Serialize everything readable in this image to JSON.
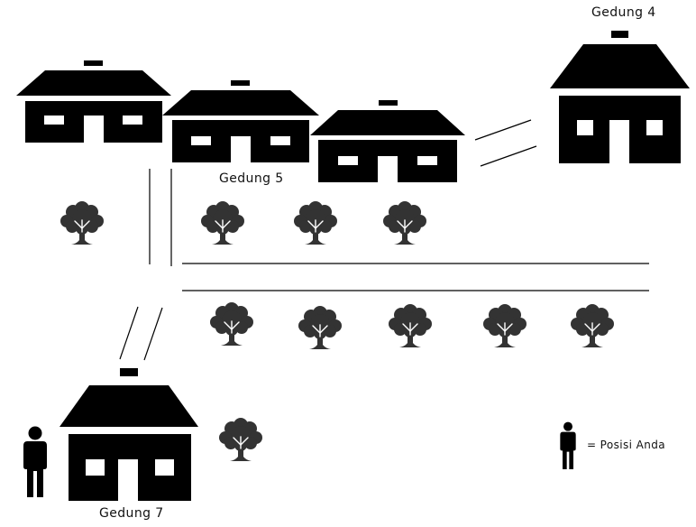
{
  "labels": {
    "gedung_4": "Gedung 4",
    "gedung_5": "Gedung 5",
    "gedung_7": "Gedung 7"
  },
  "legend": {
    "text": "= Posisi Anda",
    "icon": "person-icon"
  },
  "icons": {
    "building": "building-icon",
    "tree": "tree-icon",
    "person": "person-icon"
  },
  "colors": {
    "building": "#000000",
    "tree": "#333333",
    "person": "#000000",
    "line": "#000000",
    "background": "#ffffff"
  }
}
